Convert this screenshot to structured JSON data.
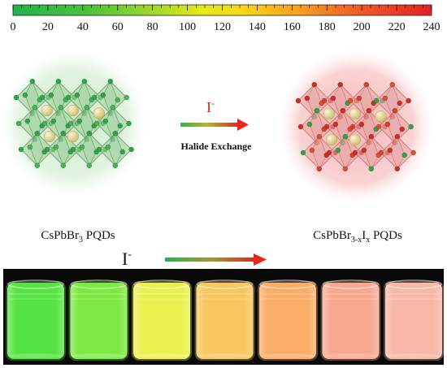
{
  "scale_bar": {
    "ticks": [
      "0",
      "20",
      "40",
      "60",
      "80",
      "100",
      "120",
      "140",
      "160",
      "180",
      "200",
      "220",
      "240"
    ],
    "colors": [
      "#21b24b",
      "#4cc23c",
      "#8cd52d",
      "#d7e71b",
      "#f7e615",
      "#f7b51b",
      "#f57c22",
      "#ef3d24",
      "#e21f26"
    ]
  },
  "reaction": {
    "ion": "I",
    "ion_charge": "-",
    "arrow_label": "Halide Exchange",
    "left_label": {
      "base": "CsPbBr",
      "sub1": "3",
      "rest": " PQDs"
    },
    "right_label": {
      "base": "CsPbBr",
      "sub1": "3-x",
      "mid": "I",
      "sub2": "x",
      "rest": " PQDs"
    }
  },
  "photo": {
    "ion": "I",
    "ion_charge": "-",
    "vial_count": 7,
    "vial_colors": [
      "#4fe23a",
      "#78e83a",
      "#e9ef47",
      "#f8c457",
      "#f9a95f",
      "#f7a48a",
      "#f7b4a0"
    ]
  },
  "colors": {
    "green_glow": "#d8f0d6",
    "red_glow": "#f9c8c8",
    "arrow_green": "#2fb44a",
    "arrow_red": "#e8241e",
    "ion_red": "#d62718"
  }
}
